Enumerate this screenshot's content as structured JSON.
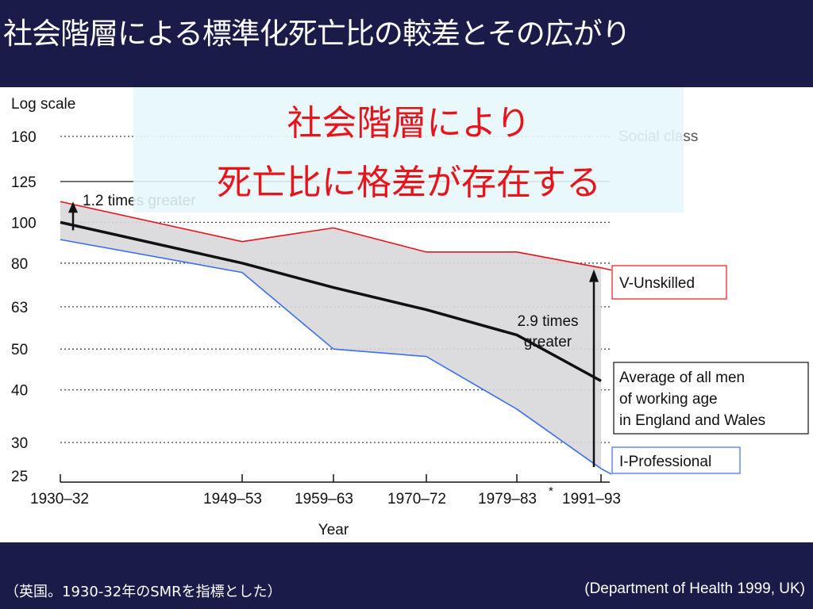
{
  "slide": {
    "title": "社会階層による標準化死亡比の較差とその広がり",
    "footer_left": "（英国。1930-32年のSMRを指標とした）",
    "footer_right": "(Department of Health 1999, UK)",
    "colors": {
      "background": "#1b1b4a",
      "highlight_box": "#e6f7fa",
      "callout_text": "#e8141c"
    }
  },
  "callout": {
    "line1": "社会階層により",
    "line2": "死亡比に格差が存在する"
  },
  "chart_data": {
    "type": "line",
    "y_scale": "log",
    "ylabel": "Log scale",
    "xlabel": "Year",
    "yticks": [
      160,
      125,
      100,
      80,
      63,
      50,
      40,
      30,
      25
    ],
    "ylim": [
      25,
      160
    ],
    "categories": [
      "1930–32",
      "1949–53",
      "1959–63",
      "1970–72",
      "1979–83",
      "1991–93"
    ],
    "category_footnote": "*",
    "category_footnote_index": 4,
    "legend_title": "Social class",
    "series": [
      {
        "name": "V-Unskilled",
        "color": "#e8141c",
        "values": [
          112,
          90,
          97,
          85,
          85,
          78
        ]
      },
      {
        "name": "Average of all men of working age in England and Wales",
        "label_lines": [
          "Average of all men",
          "of working age",
          "in England and Wales"
        ],
        "color": "#111111",
        "values": [
          100,
          80,
          70,
          62,
          54,
          42
        ]
      },
      {
        "name": "I-Professional",
        "color": "#3d6fe8",
        "values": [
          91,
          76,
          50,
          48,
          36,
          26
        ]
      }
    ],
    "annotations": [
      {
        "text": "1.2 times greater",
        "category": "1930–32"
      },
      {
        "text_lines": [
          "2.9 times",
          "greater"
        ],
        "category": "1991–93"
      }
    ]
  }
}
